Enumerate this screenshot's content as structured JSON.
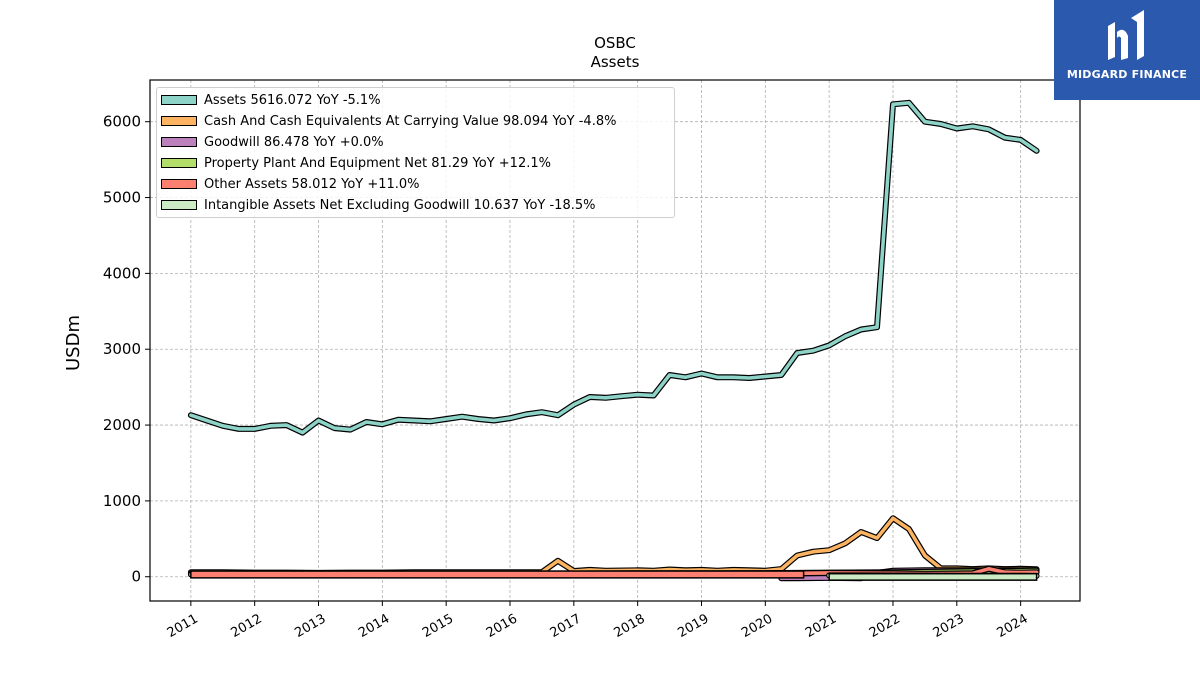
{
  "branding": {
    "logo_text": "MIDGARD FINANCE",
    "logo_bg": "#2a59ad"
  },
  "chart_data": {
    "type": "area",
    "title": "OSBC",
    "subtitle": "Assets",
    "ylabel": "USDm",
    "xlabel": "",
    "ylim": [
      -320,
      6550
    ],
    "xlim": [
      2010.36,
      2024.93
    ],
    "yticks": [
      0,
      1000,
      2000,
      3000,
      4000,
      5000,
      6000
    ],
    "xticks": [
      2011,
      2012,
      2013,
      2014,
      2015,
      2016,
      2017,
      2018,
      2019,
      2020,
      2021,
      2022,
      2023,
      2024
    ],
    "grid": true,
    "legend_position": "top-left",
    "series": [
      {
        "name": "Assets",
        "legend": "Assets  5616.072 YoY -5.1%",
        "color": "#8dd3c7",
        "x": [
          2011.0,
          2011.25,
          2011.5,
          2011.75,
          2012.0,
          2012.25,
          2012.5,
          2012.75,
          2013.0,
          2013.25,
          2013.5,
          2013.75,
          2014.0,
          2014.25,
          2014.5,
          2014.75,
          2015.0,
          2015.25,
          2015.5,
          2015.75,
          2016.0,
          2016.25,
          2016.5,
          2016.75,
          2017.0,
          2017.25,
          2017.5,
          2017.75,
          2018.0,
          2018.25,
          2018.5,
          2018.75,
          2019.0,
          2019.25,
          2019.5,
          2019.75,
          2020.0,
          2020.25,
          2020.5,
          2020.75,
          2021.0,
          2021.25,
          2021.5,
          2021.75,
          2022.0,
          2022.25,
          2022.5,
          2022.75,
          2023.0,
          2023.25,
          2023.5,
          2023.75,
          2024.0,
          2024.25
        ],
        "values": [
          2130,
          2060,
          1990,
          1950,
          1950,
          1990,
          2000,
          1900,
          2060,
          1960,
          1940,
          2040,
          2010,
          2070,
          2060,
          2050,
          2080,
          2110,
          2080,
          2060,
          2090,
          2140,
          2170,
          2130,
          2270,
          2370,
          2360,
          2380,
          2400,
          2390,
          2660,
          2630,
          2680,
          2630,
          2630,
          2620,
          2640,
          2660,
          2950,
          2980,
          3050,
          3170,
          3260,
          3290,
          6230,
          6250,
          6000,
          5970,
          5910,
          5940,
          5900,
          5790,
          5760,
          5616
        ]
      },
      {
        "name": "Cash And Cash Equivalents At Carrying Value",
        "legend": "Cash And Cash Equivalents At Carrying Value  98.094 YoY -4.8%",
        "color": "#fdb462",
        "x": [
          2011.0,
          2011.5,
          2012.0,
          2012.5,
          2013.0,
          2013.5,
          2014.0,
          2014.5,
          2015.0,
          2015.5,
          2016.0,
          2016.5,
          2016.75,
          2017.0,
          2017.25,
          2017.5,
          2018.0,
          2018.25,
          2018.5,
          2018.75,
          2019.0,
          2019.25,
          2019.5,
          2019.75,
          2020.0,
          2020.25,
          2020.5,
          2020.75,
          2021.0,
          2021.25,
          2021.5,
          2021.75,
          2022.0,
          2022.25,
          2022.5,
          2022.75,
          2023.0,
          2023.25,
          2023.5,
          2023.75,
          2024.0,
          2024.25
        ],
        "values": [
          60,
          60,
          55,
          55,
          50,
          55,
          55,
          60,
          60,
          60,
          60,
          60,
          210,
          75,
          90,
          80,
          85,
          80,
          95,
          85,
          90,
          80,
          90,
          85,
          80,
          100,
          280,
          330,
          350,
          440,
          590,
          510,
          770,
          630,
          280,
          110,
          110,
          100,
          110,
          100,
          105,
          98
        ]
      },
      {
        "name": "Goodwill",
        "legend": "Goodwill  86.478 YoY +0.0%",
        "color": "#bc80bd",
        "x": [
          2020.25,
          2020.5,
          2021.0,
          2021.5,
          2021.75,
          2022.0,
          2022.5,
          2023.0,
          2023.5,
          2024.0,
          2024.25
        ],
        "values": [
          -20,
          -20,
          -15,
          -20,
          50,
          80,
          86,
          86,
          86,
          86,
          86
        ]
      },
      {
        "name": "Property Plant And Equipment Net",
        "legend": "Property Plant And Equipment Net  81.29 YoY +12.1%",
        "color": "#b3de69",
        "x": [
          2011.0,
          2012.0,
          2013.0,
          2014.0,
          2015.0,
          2016.0,
          2017.0,
          2018.0,
          2019.0,
          2020.0,
          2021.0,
          2022.0,
          2023.0,
          2023.5,
          2024.0,
          2024.25
        ],
        "values": [
          40,
          40,
          38,
          40,
          40,
          40,
          42,
          45,
          45,
          48,
          55,
          60,
          70,
          75,
          78,
          81
        ]
      },
      {
        "name": "Other Assets",
        "legend": "Other Assets  58.012 YoY +11.0%",
        "color": "#fb8072",
        "x": [
          2011.0,
          2012.0,
          2013.0,
          2014.0,
          2015.0,
          2016.0,
          2017.0,
          2018.0,
          2019.0,
          2020.0,
          2021.0,
          2022.0,
          2022.5,
          2023.0,
          2023.25,
          2023.5,
          2023.75,
          2024.0,
          2024.25
        ],
        "values": [
          30,
          28,
          20,
          25,
          25,
          25,
          28,
          30,
          35,
          40,
          50,
          45,
          40,
          42,
          45,
          105,
          60,
          55,
          58
        ]
      },
      {
        "name": "Intangible Assets Net Excluding Goodwill",
        "legend": "Intangible Assets Net Excluding Goodwill  10.637 YoY -18.5%",
        "color": "#ccebc5",
        "x": [
          2021.0,
          2021.5,
          2022.0,
          2022.5,
          2023.0,
          2023.5,
          2024.0,
          2024.25
        ],
        "values": [
          18,
          18,
          16,
          16,
          14,
          13,
          12,
          10.6
        ]
      }
    ]
  }
}
